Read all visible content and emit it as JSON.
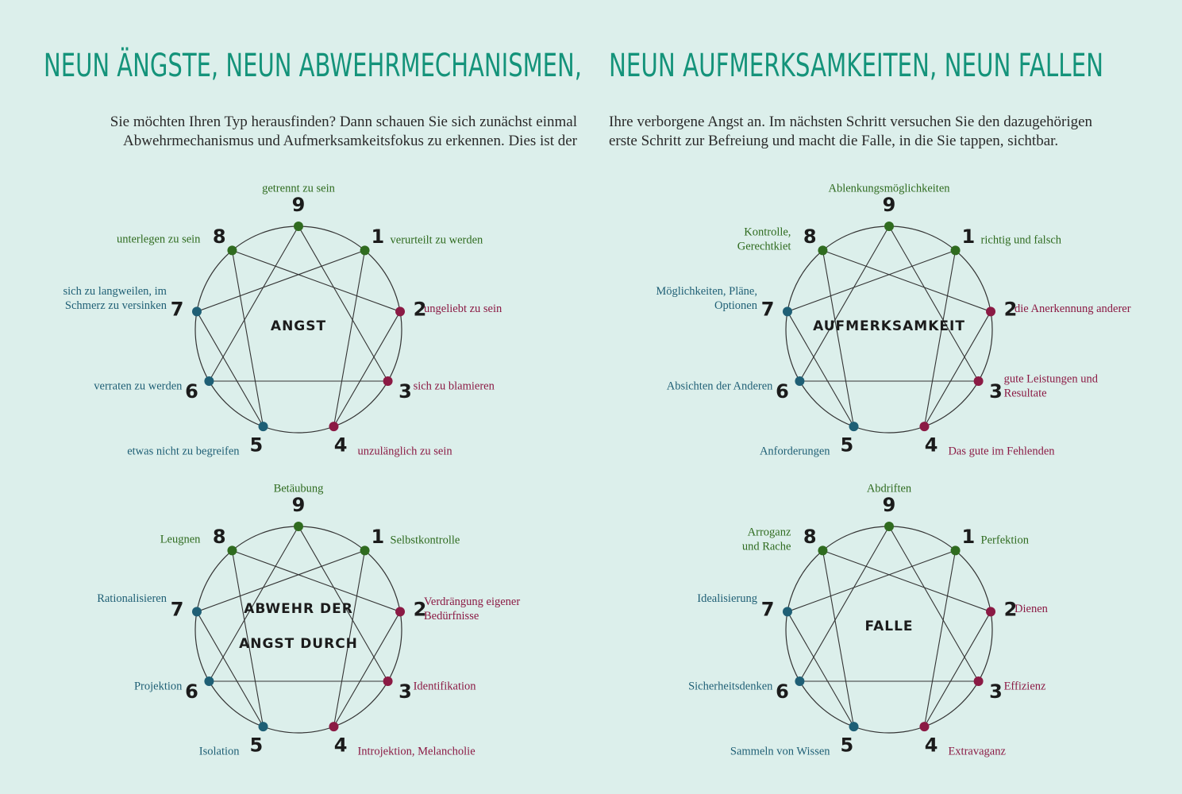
{
  "title_left": "NEUN ÄNGSTE, NEUN ABWEHRMECHANISMEN,",
  "title_right": "NEUN AUFMERKSAMKEITEN, NEUN FALLEN",
  "intro_left": [
    "Sie möchten Ihren Typ herausfinden? Dann schauen Sie sich zunächst einmal",
    "Abwehrmechanismus und Aufmerksamkeitsfokus zu erkennen. Dies ist der"
  ],
  "intro_right": [
    "Ihre verborgene Angst an. Im nächsten Schritt versuchen Sie den dazugehörigen",
    "erste Schritt zur Befreiung und macht die Falle, in die Sie tappen, sichtbar."
  ],
  "diagrams": [
    {
      "center": [
        "ANGST"
      ],
      "points": [
        {
          "number": 9,
          "label": [
            "getrennt zu sein"
          ]
        },
        {
          "number": 1,
          "label": [
            "verurteilt zu werden"
          ]
        },
        {
          "number": 2,
          "label": [
            "ungeliebt zu sein"
          ]
        },
        {
          "number": 3,
          "label": [
            "sich zu blamieren"
          ]
        },
        {
          "number": 4,
          "label": [
            "unzulänglich zu sein"
          ]
        },
        {
          "number": 5,
          "label": [
            "etwas nicht zu begreifen"
          ]
        },
        {
          "number": 6,
          "label": [
            "verraten zu werden"
          ]
        },
        {
          "number": 7,
          "label": [
            "sich zu langweilen, im",
            "Schmerz zu versinken"
          ]
        },
        {
          "number": 8,
          "label": [
            "unterlegen zu sein"
          ]
        }
      ]
    },
    {
      "center": [
        "AUFMERKSAMKEIT"
      ],
      "points": [
        {
          "number": 9,
          "label": [
            "Ablenkungsmöglichkeiten"
          ]
        },
        {
          "number": 1,
          "label": [
            "richtig und falsch"
          ]
        },
        {
          "number": 2,
          "label": [
            "die Anerkennung anderer"
          ]
        },
        {
          "number": 3,
          "label": [
            "gute Leistungen und",
            "Resultate"
          ]
        },
        {
          "number": 4,
          "label": [
            "Das gute im Fehlenden"
          ]
        },
        {
          "number": 5,
          "label": [
            "Anforderungen"
          ]
        },
        {
          "number": 6,
          "label": [
            "Absichten der Anderen"
          ]
        },
        {
          "number": 7,
          "label": [
            "Möglichkeiten, Pläne,",
            "Optionen"
          ]
        },
        {
          "number": 8,
          "label": [
            "Kontrolle,",
            "Gerechtkiet"
          ]
        }
      ]
    },
    {
      "center": [
        "ABWEHR DER",
        "ANGST DURCH"
      ],
      "points": [
        {
          "number": 9,
          "label": [
            "Betäubung"
          ]
        },
        {
          "number": 1,
          "label": [
            "Selbstkontrolle"
          ]
        },
        {
          "number": 2,
          "label": [
            "Verdrängung eigener",
            "Bedürfnisse"
          ]
        },
        {
          "number": 3,
          "label": [
            "Identifikation"
          ]
        },
        {
          "number": 4,
          "label": [
            "Introjektion, Melancholie"
          ]
        },
        {
          "number": 5,
          "label": [
            "Isolation"
          ]
        },
        {
          "number": 6,
          "label": [
            "Projektion"
          ]
        },
        {
          "number": 7,
          "label": [
            "Rationalisieren"
          ]
        },
        {
          "number": 8,
          "label": [
            "Leugnen"
          ]
        }
      ]
    },
    {
      "center": [
        "FALLE"
      ],
      "points": [
        {
          "number": 9,
          "label": [
            "Abdriften"
          ]
        },
        {
          "number": 1,
          "label": [
            "Perfektion"
          ]
        },
        {
          "number": 2,
          "label": [
            "Dienen"
          ]
        },
        {
          "number": 3,
          "label": [
            "Effizienz"
          ]
        },
        {
          "number": 4,
          "label": [
            "Extravaganz"
          ]
        },
        {
          "number": 5,
          "label": [
            "Sammeln von Wissen"
          ]
        },
        {
          "number": 6,
          "label": [
            "Sicherheitsdenken"
          ]
        },
        {
          "number": 7,
          "label": [
            "Idealisierung"
          ]
        },
        {
          "number": 8,
          "label": [
            "Arroganz",
            "und Rache"
          ]
        }
      ]
    }
  ]
}
